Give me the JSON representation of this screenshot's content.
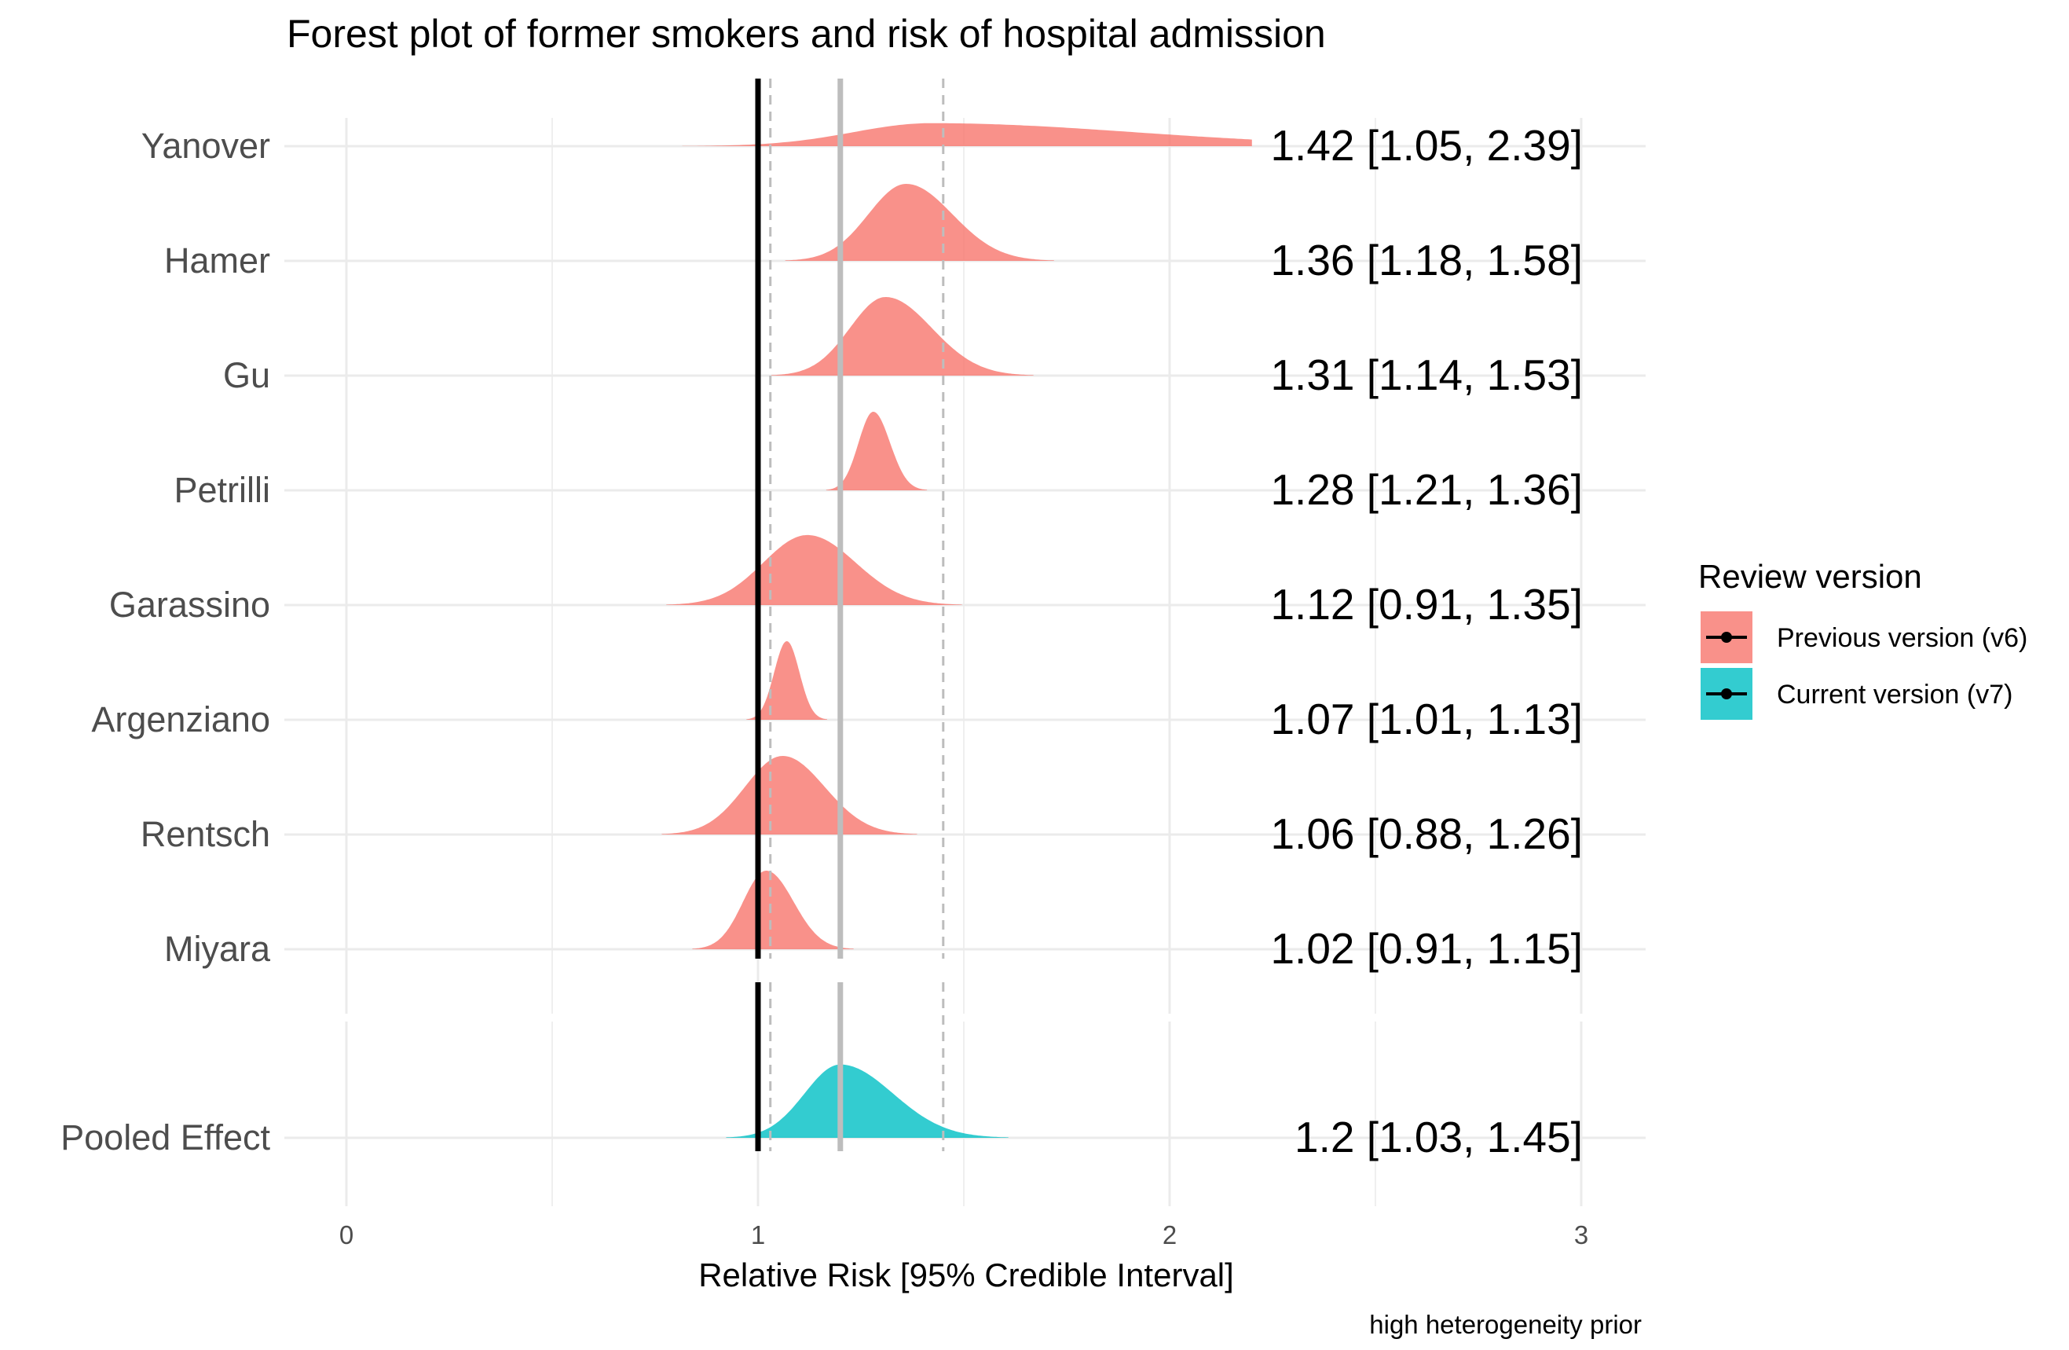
{
  "chart_data": {
    "type": "forest-density",
    "title": "Forest plot of former smokers and risk of hospital admission",
    "xlabel": "Relative Risk [95% Credible Interval]",
    "caption": "high heterogeneity prior",
    "xlim": [
      0,
      3
    ],
    "x_ticks": [
      0,
      1,
      2,
      3
    ],
    "x_tick_labels": [
      "0",
      "1",
      "2",
      "3"
    ],
    "reference_lines": {
      "null_effect": 1,
      "pooled_estimate": 1.2,
      "pooled_ci": [
        1.03,
        1.45
      ]
    },
    "legend": {
      "title": "Review version",
      "position": "right",
      "entries": [
        {
          "label": "Previous version (v6)",
          "color": "#F8766D"
        },
        {
          "label": "Current version (v7)",
          "color": "#00BFC4"
        }
      ]
    },
    "studies": [
      {
        "name": "Yanover",
        "estimate": 1.42,
        "lower": 1.05,
        "upper": 2.39,
        "label": "1.42 [1.05, 2.39]",
        "group": "Previous version (v6)"
      },
      {
        "name": "Hamer",
        "estimate": 1.36,
        "lower": 1.18,
        "upper": 1.58,
        "label": "1.36 [1.18, 1.58]",
        "group": "Previous version (v6)"
      },
      {
        "name": "Gu",
        "estimate": 1.31,
        "lower": 1.14,
        "upper": 1.53,
        "label": "1.31 [1.14, 1.53]",
        "group": "Previous version (v6)"
      },
      {
        "name": "Petrilli",
        "estimate": 1.28,
        "lower": 1.21,
        "upper": 1.36,
        "label": "1.28 [1.21, 1.36]",
        "group": "Previous version (v6)"
      },
      {
        "name": "Garassino",
        "estimate": 1.12,
        "lower": 0.91,
        "upper": 1.35,
        "label": "1.12 [0.91, 1.35]",
        "group": "Previous version (v6)"
      },
      {
        "name": "Argenziano",
        "estimate": 1.07,
        "lower": 1.01,
        "upper": 1.13,
        "label": "1.07 [1.01, 1.13]",
        "group": "Previous version (v6)"
      },
      {
        "name": "Rentsch",
        "estimate": 1.06,
        "lower": 0.88,
        "upper": 1.26,
        "label": "1.06 [0.88, 1.26]",
        "group": "Previous version (v6)"
      },
      {
        "name": "Miyara",
        "estimate": 1.02,
        "lower": 0.91,
        "upper": 1.15,
        "label": "1.02 [0.91, 1.15]",
        "group": "Previous version (v6)"
      }
    ],
    "pooled": {
      "name": "Pooled Effect",
      "estimate": 1.2,
      "lower": 1.03,
      "upper": 1.45,
      "label": "1.2 [1.03, 1.45]",
      "group": "Current version (v7)"
    }
  }
}
